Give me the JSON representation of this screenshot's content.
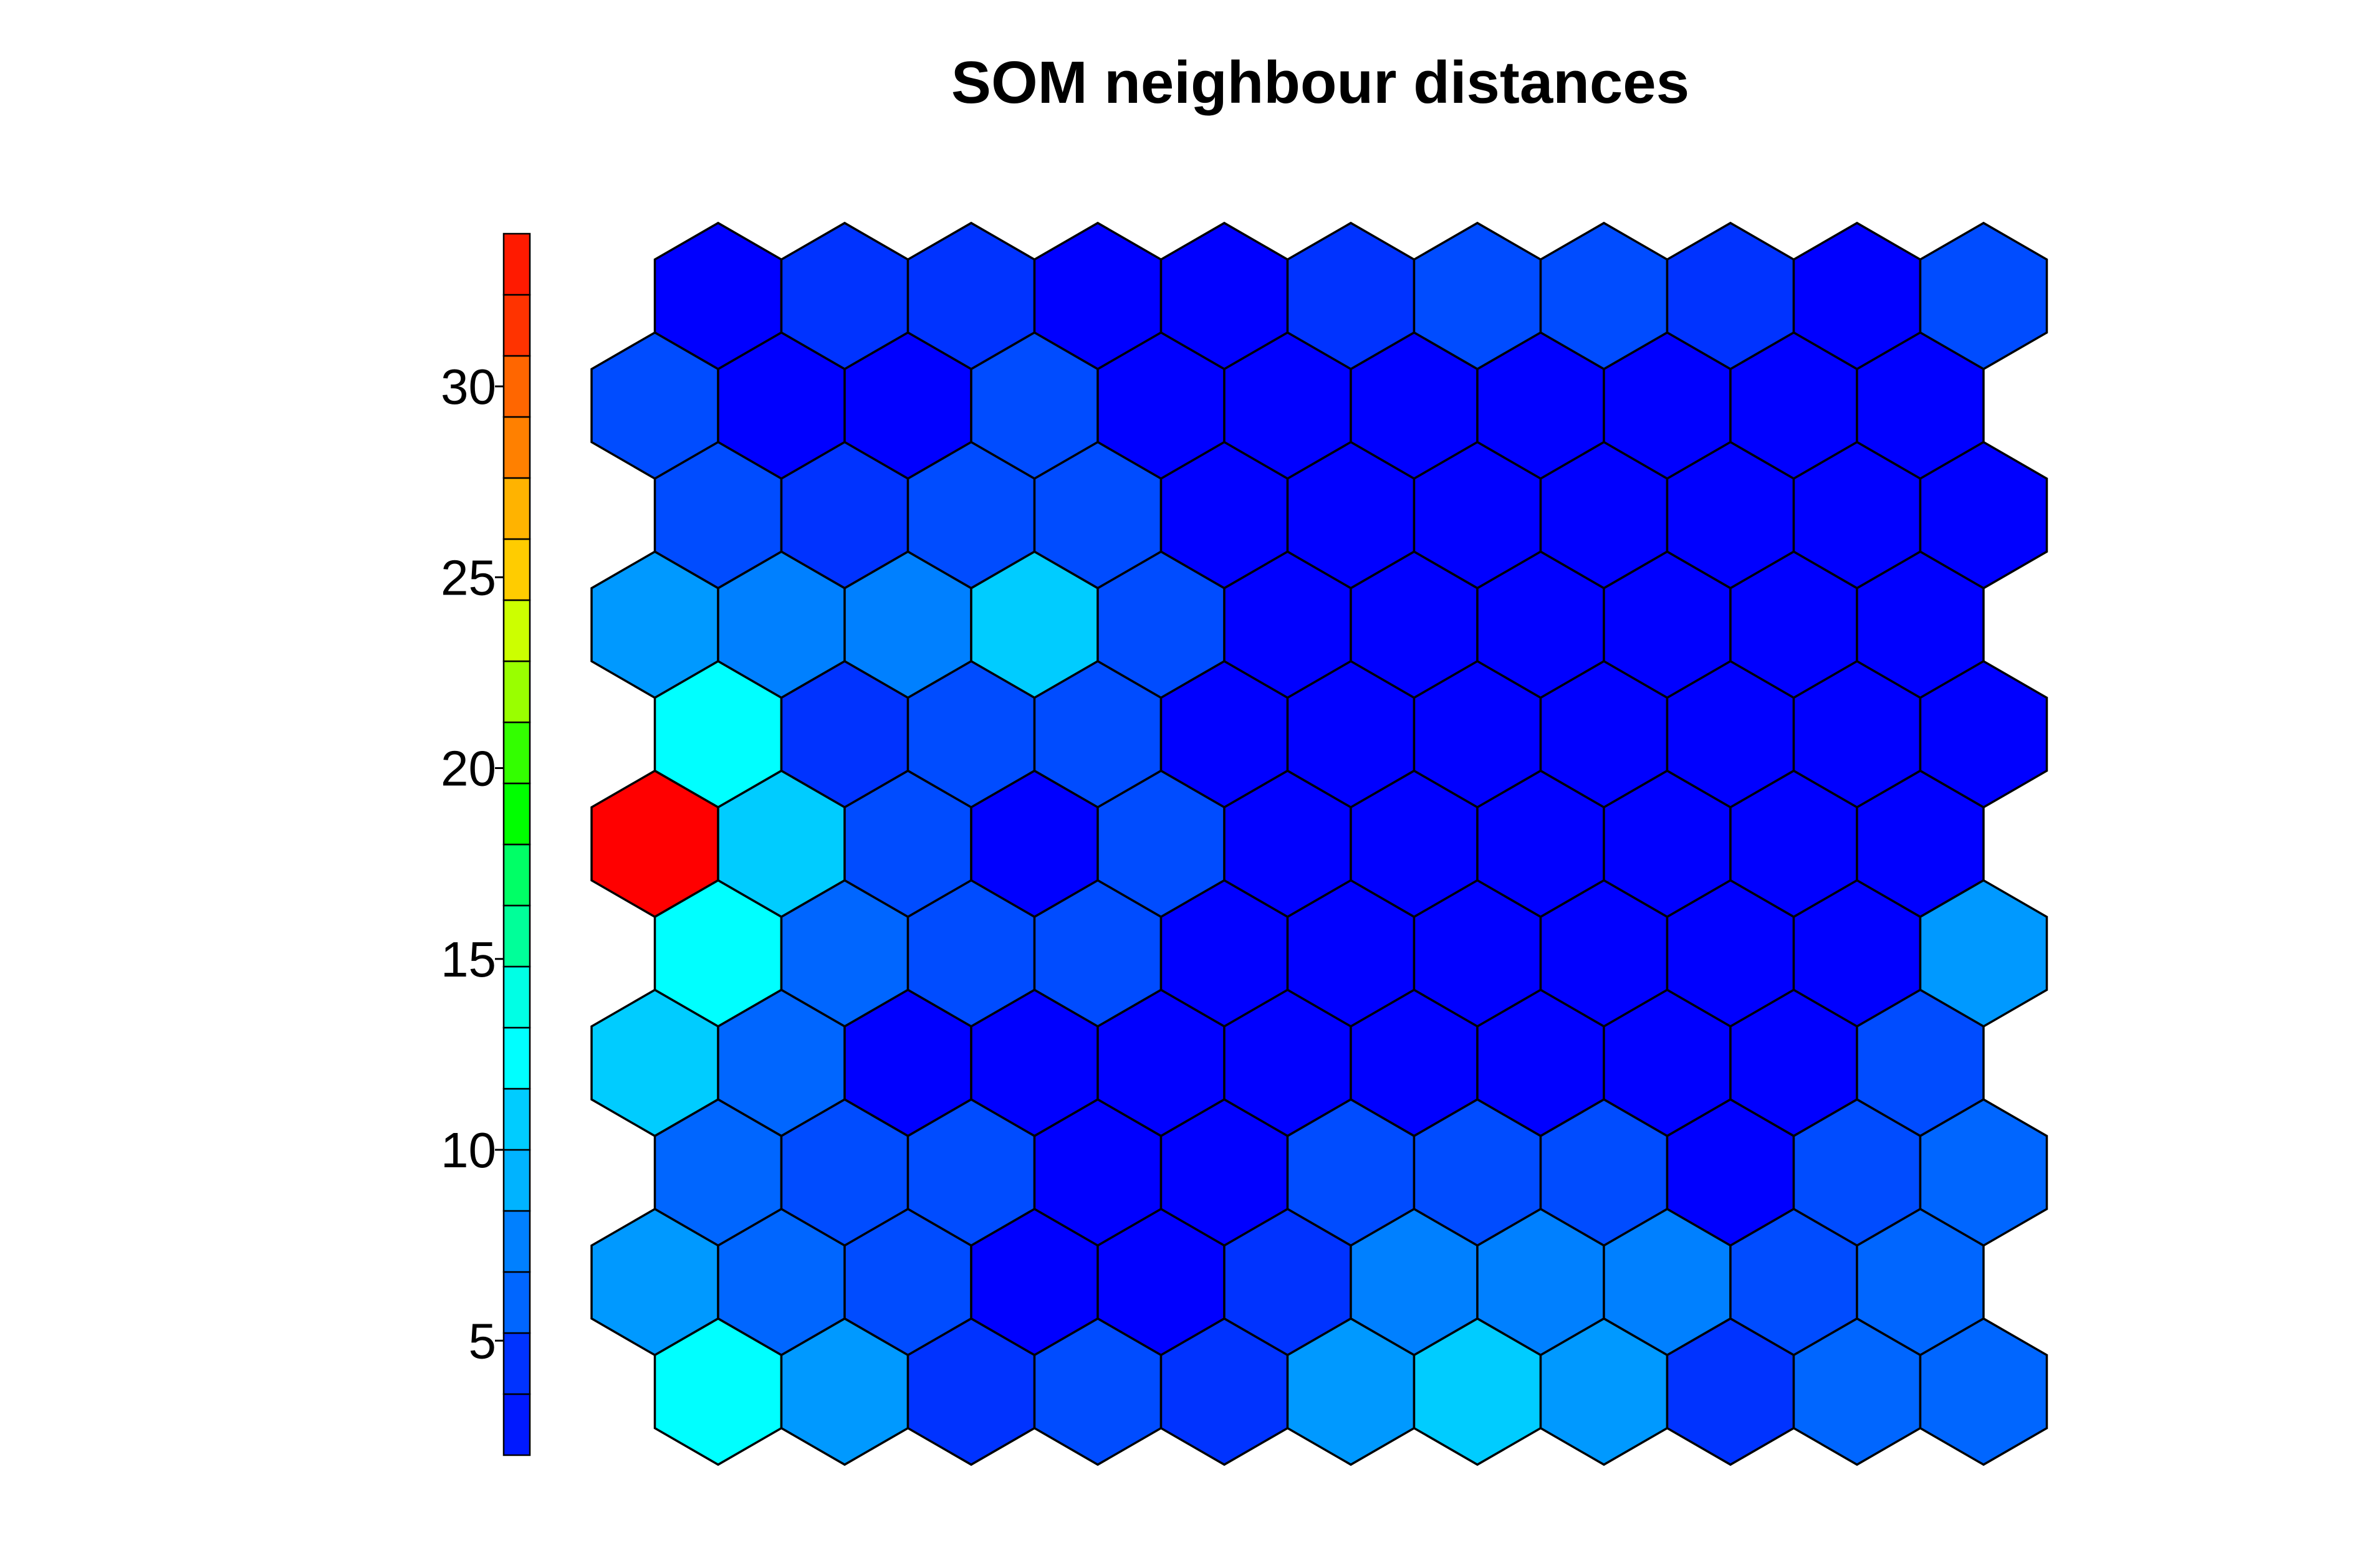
{
  "colors": {
    "palette": [
      "#0000ff",
      "#0019ff",
      "#0033ff",
      "#004cff",
      "#0066ff",
      "#0080ff",
      "#0099ff",
      "#00b3ff",
      "#00ccff",
      "#00e5ff",
      "#00ffff",
      "#00ffe5",
      "#00ffcc",
      "#00ff99",
      "#00ff66",
      "#00ff33",
      "#00ff00",
      "#33ff00",
      "#66ff00",
      "#99ff00",
      "#ccff00",
      "#ffff00",
      "#ffcc00",
      "#ffb300",
      "#ff9900",
      "#ff8000",
      "#ff6600",
      "#ff4c00",
      "#ff3300",
      "#ff1a00",
      "#ff0000"
    ]
  },
  "chart_data": {
    "type": "heatmap",
    "subtype": "hexagonal SOM grid",
    "title": "SOM neighbour distances",
    "grid": {
      "rows": 11,
      "cols": 11,
      "topology": "hexagonal"
    },
    "color_scale": {
      "min": 2.0,
      "max": 34.0,
      "steps": 20,
      "ticks": [
        5,
        10,
        15,
        20,
        25,
        30
      ],
      "tick_labels": [
        "5",
        "10",
        "15",
        "20",
        "25",
        "30"
      ],
      "colormap": "jet-like (blue to red)",
      "position": "left"
    },
    "rows_top_to_bottom": [
      [
        2.5,
        4.5,
        4.5,
        2.5,
        2.5,
        4.5,
        5.0,
        5.0,
        4.5,
        2.5,
        5.0
      ],
      [
        5.0,
        2.5,
        2.5,
        5.5,
        2.5,
        2.5,
        2.5,
        2.5,
        2.5,
        2.5,
        2.5
      ],
      [
        5.0,
        4.5,
        5.0,
        5.5,
        2.5,
        2.5,
        2.5,
        2.5,
        2.5,
        2.5,
        2.5
      ],
      [
        8.0,
        7.5,
        7.0,
        11.0,
        5.0,
        2.5,
        2.5,
        2.5,
        2.5,
        2.5,
        2.5
      ],
      [
        13.0,
        4.5,
        5.0,
        5.5,
        2.5,
        2.5,
        2.5,
        2.5,
        2.5,
        2.5,
        2.5
      ],
      [
        33.5,
        11.0,
        5.0,
        2.5,
        5.5,
        2.5,
        2.5,
        2.5,
        2.5,
        2.5,
        2.5
      ],
      [
        13.0,
        6.5,
        5.0,
        5.5,
        2.5,
        2.5,
        2.5,
        2.5,
        2.5,
        2.5,
        8.5
      ],
      [
        10.0,
        6.5,
        2.5,
        2.5,
        2.5,
        2.5,
        2.5,
        2.5,
        2.5,
        2.5,
        5.0
      ],
      [
        6.0,
        5.0,
        5.0,
        2.5,
        2.5,
        5.0,
        5.0,
        5.0,
        2.5,
        5.0,
        6.5
      ],
      [
        8.0,
        6.5,
        5.0,
        2.5,
        2.5,
        4.5,
        7.0,
        7.0,
        7.5,
        5.0,
        6.5
      ],
      [
        13.0,
        8.5,
        4.5,
        5.0,
        4.5,
        8.5,
        10.0,
        8.5,
        4.0,
        6.5,
        6.0
      ]
    ],
    "row_offset": "odd rows (from top, 0-indexed) shifted left by half a cell"
  }
}
